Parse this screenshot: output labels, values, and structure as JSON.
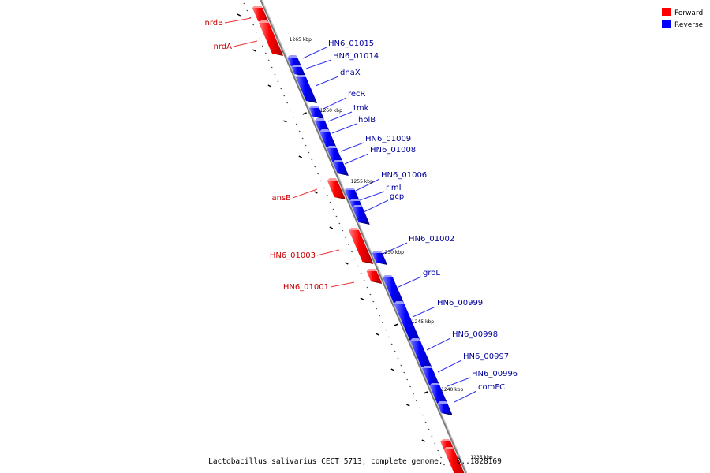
{
  "caption": "Lactobacillus salivarius CECT 5713, complete genome. - 0..1828169",
  "legend": [
    {
      "label": "Forward",
      "color": "#ff0000"
    },
    {
      "label": "Reverse",
      "color": "#0000ff"
    }
  ],
  "colors": {
    "forward_label": "#cc0000",
    "reverse_label": "#000099",
    "backbone": "#888888"
  },
  "genes": [
    {
      "id": "nrdB",
      "strand": "forward"
    },
    {
      "id": "nrdA",
      "strand": "forward"
    },
    {
      "id": "HN6_01015",
      "strand": "reverse"
    },
    {
      "id": "HN6_01014",
      "strand": "reverse"
    },
    {
      "id": "dnaX",
      "strand": "reverse"
    },
    {
      "id": "recR",
      "strand": "reverse"
    },
    {
      "id": "tmk",
      "strand": "reverse"
    },
    {
      "id": "holB",
      "strand": "reverse"
    },
    {
      "id": "HN6_01009",
      "strand": "reverse"
    },
    {
      "id": "HN6_01008",
      "strand": "reverse"
    },
    {
      "id": "ansB",
      "strand": "forward"
    },
    {
      "id": "HN6_01006",
      "strand": "reverse"
    },
    {
      "id": "rimI",
      "strand": "reverse"
    },
    {
      "id": "gcp",
      "strand": "reverse"
    },
    {
      "id": "HN6_01003",
      "strand": "forward"
    },
    {
      "id": "HN6_01002",
      "strand": "reverse"
    },
    {
      "id": "HN6_01001",
      "strand": "forward"
    },
    {
      "id": "groL",
      "strand": "reverse"
    },
    {
      "id": "HN6_00999",
      "strand": "reverse"
    },
    {
      "id": "HN6_00998",
      "strand": "reverse"
    },
    {
      "id": "HN6_00997",
      "strand": "reverse"
    },
    {
      "id": "HN6_00996",
      "strand": "reverse"
    },
    {
      "id": "comFC",
      "strand": "reverse"
    }
  ],
  "scale_labels": [
    "1265 kbp",
    "1260 kbp",
    "1255 kbp",
    "1250 kbp",
    "1245 kbp",
    "1240 kbp",
    "1235 kbp"
  ]
}
